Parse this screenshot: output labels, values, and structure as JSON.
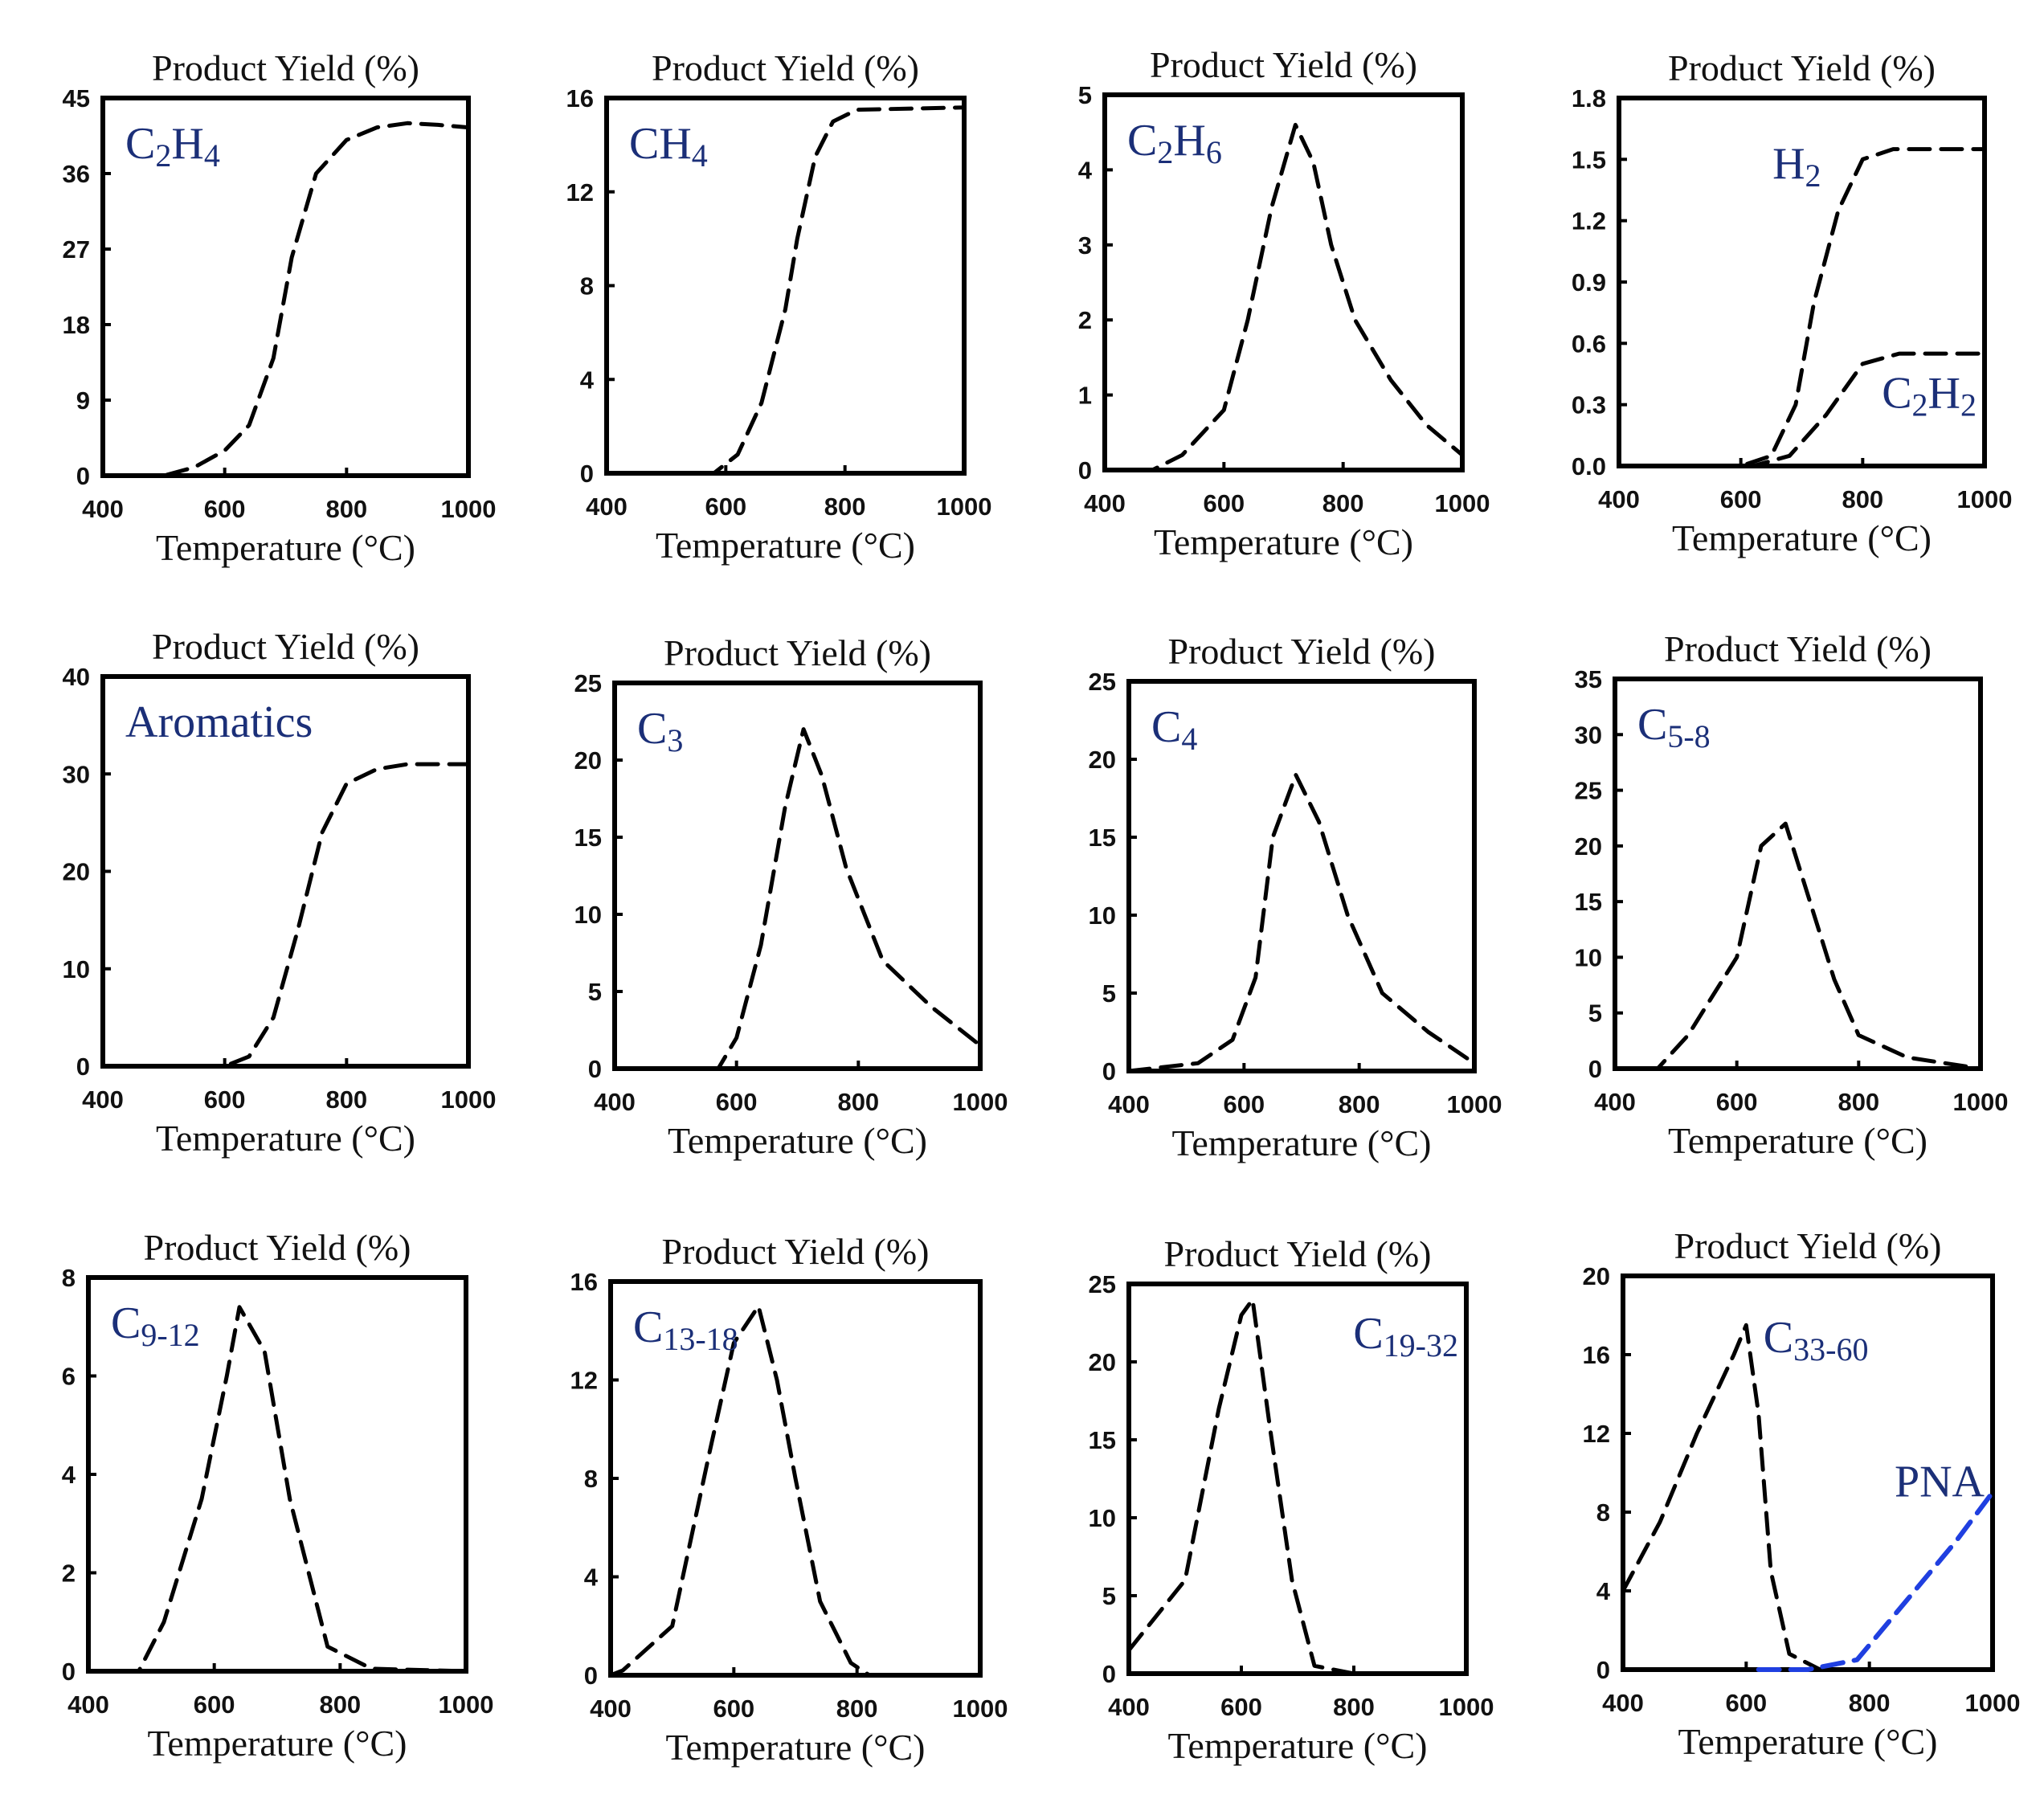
{
  "chart_data": [
    {
      "type": "line",
      "ytitle": "Product Yield (%)",
      "xlabel": "Temperature (°C)",
      "label": {
        "base": "C",
        "parts": [
          [
            "C",
            ""
          ],
          [
            "2",
            "sub"
          ],
          [
            "H",
            ""
          ],
          [
            "4",
            "sub"
          ]
        ]
      },
      "label_pos": "top-left",
      "xlim": [
        400,
        1000
      ],
      "xticks": [
        400,
        600,
        800,
        1000
      ],
      "ylim": [
        0,
        45
      ],
      "yticks": [
        0,
        9,
        18,
        27,
        36,
        45
      ],
      "ytick_labels": [
        "0",
        "9",
        "18",
        "27",
        "36",
        "45"
      ],
      "series": [
        {
          "color": "#000000",
          "points": [
            [
              400,
              0
            ],
            [
              500,
              0
            ],
            [
              550,
              1
            ],
            [
              600,
              3
            ],
            [
              640,
              6
            ],
            [
              680,
              14
            ],
            [
              710,
              26
            ],
            [
              750,
              36
            ],
            [
              800,
              40
            ],
            [
              850,
              41.5
            ],
            [
              900,
              42
            ],
            [
              950,
              41.8
            ],
            [
              1000,
              41.5
            ]
          ]
        }
      ]
    },
    {
      "type": "line",
      "ytitle": "Product Yield (%)",
      "xlabel": "Temperature (°C)",
      "label": {
        "parts": [
          [
            "CH",
            ""
          ],
          [
            "4",
            "sub"
          ]
        ]
      },
      "label_pos": "top-left",
      "xlim": [
        400,
        1000
      ],
      "xticks": [
        400,
        600,
        800,
        1000
      ],
      "ylim": [
        0,
        16
      ],
      "yticks": [
        0,
        4,
        8,
        12,
        16
      ],
      "ytick_labels": [
        "0",
        "4",
        "8",
        "12",
        "16"
      ],
      "series": [
        {
          "color": "#000000",
          "points": [
            [
              400,
              0
            ],
            [
              580,
              0
            ],
            [
              620,
              0.8
            ],
            [
              660,
              3
            ],
            [
              700,
              7
            ],
            [
              720,
              10
            ],
            [
              750,
              13.5
            ],
            [
              780,
              15
            ],
            [
              820,
              15.5
            ],
            [
              1000,
              15.6
            ]
          ]
        }
      ]
    },
    {
      "type": "line",
      "ytitle": "Product Yield (%)",
      "xlabel": "Temperature (°C)",
      "label": {
        "parts": [
          [
            "C",
            ""
          ],
          [
            "2",
            "sub"
          ],
          [
            "H",
            ""
          ],
          [
            "6",
            "sub"
          ]
        ]
      },
      "label_pos": "top-left",
      "xlim": [
        400,
        1000
      ],
      "xticks": [
        400,
        600,
        800,
        1000
      ],
      "ylim": [
        0,
        5
      ],
      "yticks": [
        0,
        1,
        2,
        3,
        4,
        5
      ],
      "ytick_labels": [
        "0",
        "1",
        "2",
        "3",
        "4",
        "5"
      ],
      "series": [
        {
          "color": "#000000",
          "points": [
            [
              400,
              0
            ],
            [
              480,
              0
            ],
            [
              530,
              0.2
            ],
            [
              600,
              0.8
            ],
            [
              640,
              2
            ],
            [
              680,
              3.5
            ],
            [
              720,
              4.6
            ],
            [
              750,
              4.1
            ],
            [
              780,
              3
            ],
            [
              820,
              2
            ],
            [
              880,
              1.2
            ],
            [
              940,
              0.6
            ],
            [
              1000,
              0.2
            ]
          ]
        }
      ]
    },
    {
      "type": "line",
      "ytitle": "Product Yield (%)",
      "xlabel": "Temperature (°C)",
      "label": {
        "parts": [
          [
            "H",
            ""
          ],
          [
            "2",
            "sub"
          ]
        ]
      },
      "label_pos": "mid-top",
      "label2": {
        "parts": [
          [
            "C",
            ""
          ],
          [
            "2",
            "sub"
          ],
          [
            "H",
            ""
          ],
          [
            "2",
            "sub"
          ]
        ]
      },
      "xlim": [
        400,
        1000
      ],
      "xticks": [
        400,
        600,
        800,
        1000
      ],
      "ylim": [
        0,
        1.8
      ],
      "yticks": [
        0,
        0.3,
        0.6,
        0.9,
        1.2,
        1.5,
        1.8
      ],
      "ytick_labels": [
        "0.0",
        "0.3",
        "0.6",
        "0.9",
        "1.2",
        "1.5",
        "1.8"
      ],
      "series": [
        {
          "color": "#000000",
          "points": [
            [
              400,
              0
            ],
            [
              600,
              0
            ],
            [
              650,
              0.05
            ],
            [
              690,
              0.3
            ],
            [
              720,
              0.8
            ],
            [
              760,
              1.25
            ],
            [
              800,
              1.5
            ],
            [
              850,
              1.55
            ],
            [
              1000,
              1.55
            ]
          ]
        },
        {
          "color": "#000000",
          "points": [
            [
              400,
              0
            ],
            [
              620,
              0
            ],
            [
              680,
              0.05
            ],
            [
              740,
              0.25
            ],
            [
              800,
              0.5
            ],
            [
              860,
              0.55
            ],
            [
              1000,
              0.55
            ]
          ]
        }
      ]
    },
    {
      "type": "line",
      "ytitle": "Product Yield (%)",
      "xlabel": "Temperature (°C)",
      "label": {
        "parts": [
          [
            "Aromatics",
            ""
          ]
        ]
      },
      "label_pos": "top-left",
      "xlim": [
        400,
        1000
      ],
      "xticks": [
        400,
        600,
        800,
        1000
      ],
      "ylim": [
        0,
        40
      ],
      "yticks": [
        0,
        10,
        20,
        30,
        40
      ],
      "ytick_labels": [
        "0",
        "10",
        "20",
        "30",
        "40"
      ],
      "series": [
        {
          "color": "#000000",
          "points": [
            [
              400,
              0
            ],
            [
              600,
              0
            ],
            [
              640,
              1
            ],
            [
              680,
              5
            ],
            [
              720,
              14
            ],
            [
              760,
              24
            ],
            [
              800,
              29
            ],
            [
              850,
              30.5
            ],
            [
              900,
              31
            ],
            [
              1000,
              31
            ]
          ]
        }
      ]
    },
    {
      "type": "line",
      "ytitle": "Product Yield (%)",
      "xlabel": "Temperature (°C)",
      "label": {
        "parts": [
          [
            "C",
            ""
          ],
          [
            "3",
            "sub"
          ]
        ]
      },
      "label_pos": "top-left",
      "xlim": [
        400,
        1000
      ],
      "xticks": [
        400,
        600,
        800,
        1000
      ],
      "ylim": [
        0,
        25
      ],
      "yticks": [
        0,
        5,
        10,
        15,
        20,
        25
      ],
      "ytick_labels": [
        "0",
        "5",
        "10",
        "15",
        "20",
        "25"
      ],
      "series": [
        {
          "color": "#000000",
          "points": [
            [
              400,
              0
            ],
            [
              570,
              0
            ],
            [
              600,
              2
            ],
            [
              640,
              8
            ],
            [
              680,
              17
            ],
            [
              710,
              22
            ],
            [
              740,
              19
            ],
            [
              780,
              13
            ],
            [
              840,
              7
            ],
            [
              920,
              4
            ],
            [
              1000,
              1.5
            ]
          ]
        }
      ]
    },
    {
      "type": "line",
      "ytitle": "Product Yield (%)",
      "xlabel": "Temperature (°C)",
      "label": {
        "parts": [
          [
            "C",
            ""
          ],
          [
            "4",
            "sub"
          ]
        ]
      },
      "label_pos": "top-left",
      "xlim": [
        400,
        1000
      ],
      "xticks": [
        400,
        600,
        800,
        1000
      ],
      "ylim": [
        0,
        25
      ],
      "yticks": [
        0,
        5,
        10,
        15,
        20,
        25
      ],
      "ytick_labels": [
        "0",
        "5",
        "10",
        "15",
        "20",
        "25"
      ],
      "series": [
        {
          "color": "#000000",
          "points": [
            [
              400,
              0
            ],
            [
              520,
              0.5
            ],
            [
              580,
              2
            ],
            [
              620,
              6
            ],
            [
              650,
              15
            ],
            [
              690,
              19
            ],
            [
              730,
              16
            ],
            [
              780,
              10
            ],
            [
              840,
              5
            ],
            [
              920,
              2.5
            ],
            [
              1000,
              0.5
            ]
          ]
        }
      ]
    },
    {
      "type": "line",
      "ytitle": "Product Yield (%)",
      "xlabel": "Temperature (°C)",
      "label": {
        "parts": [
          [
            "C",
            ""
          ],
          [
            "5-8",
            "sub"
          ]
        ]
      },
      "label_pos": "top-left",
      "xlim": [
        400,
        1000
      ],
      "xticks": [
        400,
        600,
        800,
        1000
      ],
      "ylim": [
        0,
        35
      ],
      "yticks": [
        0,
        5,
        10,
        15,
        20,
        25,
        30,
        35
      ],
      "ytick_labels": [
        "0",
        "5",
        "10",
        "15",
        "20",
        "25",
        "30",
        "35"
      ],
      "series": [
        {
          "color": "#000000",
          "points": [
            [
              400,
              0
            ],
            [
              470,
              0
            ],
            [
              520,
              3
            ],
            [
              600,
              10
            ],
            [
              640,
              20
            ],
            [
              680,
              22
            ],
            [
              720,
              15
            ],
            [
              760,
              8
            ],
            [
              800,
              3
            ],
            [
              880,
              1
            ],
            [
              1000,
              0
            ]
          ]
        }
      ]
    },
    {
      "type": "line",
      "ytitle": "Product Yield (%)",
      "xlabel": "Temperature (°C)",
      "label": {
        "parts": [
          [
            "C",
            ""
          ],
          [
            "9-12",
            "sub"
          ]
        ]
      },
      "label_pos": "top-left",
      "xlim": [
        400,
        1000
      ],
      "xticks": [
        400,
        600,
        800,
        1000
      ],
      "ylim": [
        0,
        8
      ],
      "yticks": [
        0,
        2,
        4,
        6,
        8
      ],
      "ytick_labels": [
        "0",
        "2",
        "4",
        "6",
        "8"
      ],
      "series": [
        {
          "color": "#000000",
          "points": [
            [
              400,
              0
            ],
            [
              480,
              0
            ],
            [
              520,
              1
            ],
            [
              580,
              3.5
            ],
            [
              620,
              6
            ],
            [
              640,
              7.4
            ],
            [
              680,
              6.5
            ],
            [
              720,
              3.5
            ],
            [
              780,
              0.5
            ],
            [
              850,
              0.05
            ],
            [
              1000,
              0
            ]
          ]
        }
      ]
    },
    {
      "type": "line",
      "ytitle": "Product Yield (%)",
      "xlabel": "Temperature (°C)",
      "label": {
        "parts": [
          [
            "C",
            ""
          ],
          [
            "13-18",
            "sub"
          ]
        ]
      },
      "label_pos": "top-left",
      "xlim": [
        400,
        1000
      ],
      "xticks": [
        400,
        600,
        800,
        1000
      ],
      "ylim": [
        0,
        16
      ],
      "yticks": [
        0,
        4,
        8,
        12,
        16
      ],
      "ytick_labels": [
        "0",
        "4",
        "8",
        "12",
        "16"
      ],
      "series": [
        {
          "color": "#000000",
          "points": [
            [
              400,
              0
            ],
            [
              420,
              0.2
            ],
            [
              500,
              2
            ],
            [
              560,
              9
            ],
            [
              600,
              13.5
            ],
            [
              640,
              15
            ],
            [
              670,
              12
            ],
            [
              700,
              8
            ],
            [
              740,
              3
            ],
            [
              790,
              0.5
            ],
            [
              820,
              0
            ],
            [
              1000,
              0
            ]
          ]
        }
      ]
    },
    {
      "type": "line",
      "ytitle": "Product Yield (%)",
      "xlabel": "Temperature (°C)",
      "label": {
        "parts": [
          [
            "C",
            ""
          ],
          [
            "19-32",
            "sub"
          ]
        ]
      },
      "label_pos": "top-right",
      "xlim": [
        400,
        1000
      ],
      "xticks": [
        400,
        600,
        800,
        1000
      ],
      "ylim": [
        0,
        25
      ],
      "yticks": [
        0,
        5,
        10,
        15,
        20,
        25
      ],
      "ytick_labels": [
        "0",
        "5",
        "10",
        "15",
        "20",
        "25"
      ],
      "series": [
        {
          "color": "#000000",
          "points": [
            [
              400,
              1.5
            ],
            [
              500,
              6
            ],
            [
              560,
              17
            ],
            [
              600,
              23
            ],
            [
              620,
              24
            ],
            [
              650,
              16
            ],
            [
              690,
              6
            ],
            [
              730,
              0.5
            ],
            [
              800,
              0
            ],
            [
              850,
              0
            ]
          ]
        }
      ]
    },
    {
      "type": "line",
      "ytitle": "Product Yield (%)",
      "xlabel": "Temperature (°C)",
      "label": {
        "parts": [
          [
            "C",
            ""
          ],
          [
            "33-60",
            "sub"
          ]
        ]
      },
      "label_pos": "mid-top",
      "label2": {
        "parts": [
          [
            "PNA",
            ""
          ]
        ]
      },
      "xlim": [
        400,
        1000
      ],
      "xticks": [
        400,
        600,
        800,
        1000
      ],
      "ylim": [
        0,
        20
      ],
      "yticks": [
        0,
        4,
        8,
        12,
        16,
        20
      ],
      "ytick_labels": [
        "0",
        "4",
        "8",
        "12",
        "16",
        "20"
      ],
      "series": [
        {
          "color": "#000000",
          "points": [
            [
              400,
              4
            ],
            [
              460,
              7.5
            ],
            [
              520,
              12
            ],
            [
              580,
              16
            ],
            [
              600,
              17.5
            ],
            [
              620,
              13
            ],
            [
              640,
              5
            ],
            [
              670,
              0.8
            ],
            [
              720,
              0
            ],
            [
              840,
              0
            ]
          ]
        },
        {
          "color": "#1f3fe0",
          "points": [
            [
              620,
              0
            ],
            [
              700,
              0
            ],
            [
              780,
              0.5
            ],
            [
              860,
              3.5
            ],
            [
              940,
              6.5
            ],
            [
              1000,
              9
            ]
          ]
        }
      ]
    }
  ]
}
